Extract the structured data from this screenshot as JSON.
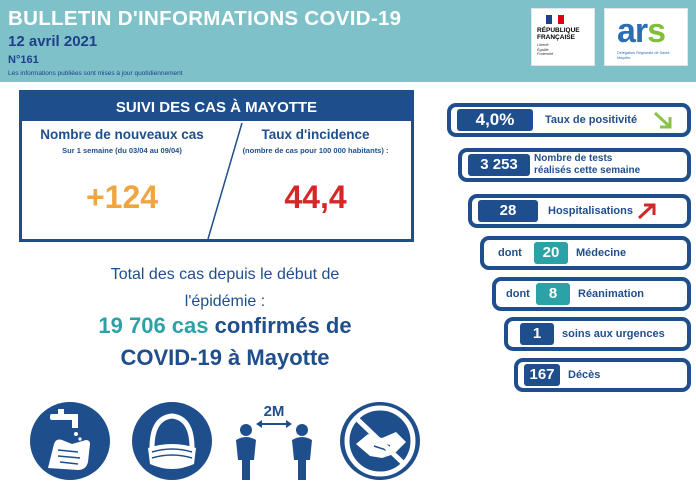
{
  "header": {
    "title": "BULLETIN D'INFORMATIONS COVID-19",
    "date": "12 avril 2021",
    "number": "N°161",
    "note": "Les informations publiées sont mises à jour quotidiennement",
    "rf_logo": {
      "line1": "RÉPUBLIQUE",
      "line2": "FRANÇAISE",
      "motto1": "Liberté",
      "motto2": "Égalité",
      "motto3": "Fraternité"
    },
    "ars_logo": {
      "word_ar": "ar",
      "word_s": "s",
      "sub1": "Délégation Régionale de Santé",
      "sub2": "Mayotte"
    }
  },
  "suivi": {
    "title": "SUIVI DES CAS À MAYOTTE",
    "new_cases": {
      "title": "Nombre de nouveaux cas",
      "subtitle": "Sur 1 semaine (du 03/04 au 09/04)",
      "value": "+124"
    },
    "incidence": {
      "title": "Taux d'incidence",
      "subtitle": "(nombre de cas pour 100 000 habitants) :",
      "value": "44,4"
    }
  },
  "total": {
    "line1": "Total des cas depuis le début de",
    "line2": "l'épidémie :",
    "count": "19 706 cas",
    "confirmed": "confirmés de",
    "line4": "COVID-19 à Mayotte"
  },
  "icons": {
    "distance_label": "2M"
  },
  "stats": {
    "positivity": {
      "value": "4,0%",
      "label": "Taux de positivité",
      "trend": "down",
      "trend_color": "#8bc34a"
    },
    "tests": {
      "value": "3 253",
      "label1": "Nombre de tests",
      "label2": "réalisés cette semaine"
    },
    "hospital": {
      "value": "28",
      "label": "Hospitalisations",
      "trend": "up",
      "trend_color": "#d62728"
    },
    "medecine": {
      "prefix": "dont",
      "value": "20",
      "label": "Médecine"
    },
    "reanimation": {
      "prefix": "dont",
      "value": "8",
      "label": "Réanimation"
    },
    "urgences": {
      "value": "1",
      "label": "soins aux urgences"
    },
    "deces": {
      "value": "167",
      "label": "Décès"
    }
  },
  "colors": {
    "navy": "#1f4e8c",
    "teal": "#2aa2a6",
    "header_bg": "#7ec1c9",
    "orange": "#f0a640",
    "red": "#d62728"
  }
}
